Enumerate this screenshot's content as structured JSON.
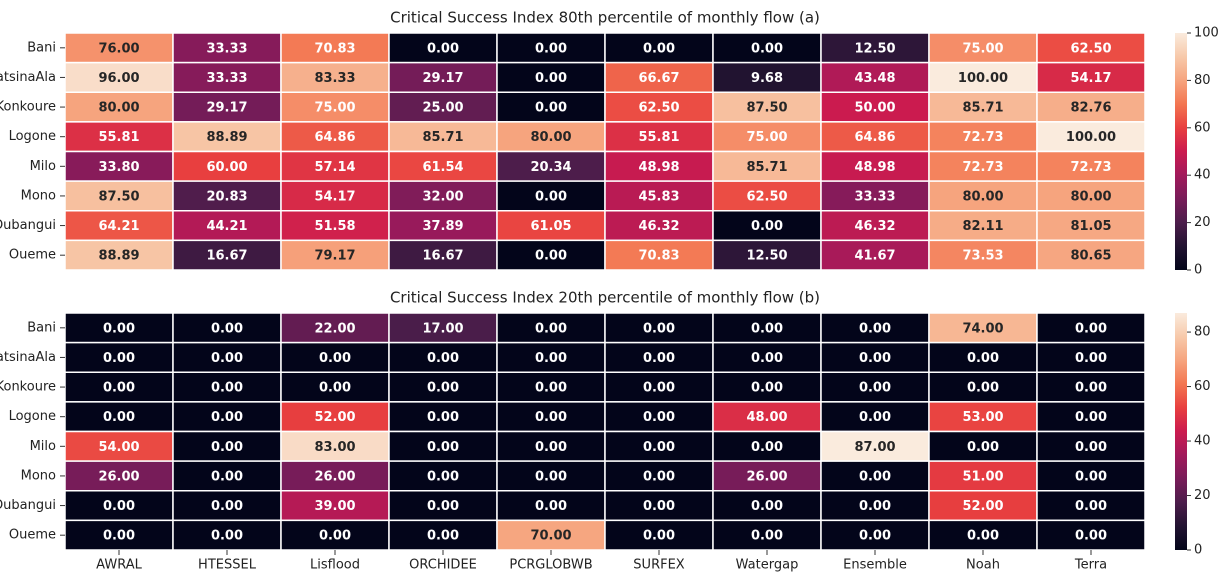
{
  "chart_data": [
    {
      "type": "heatmap",
      "title": "Critical Success Index 80th percentile of monthly flow  (a)",
      "colormap": "rocket",
      "rows": [
        "Bani",
        "KatsinaAla",
        "Konkoure",
        "Logone",
        "Milo",
        "Mono",
        "Oubangui",
        "Oueme"
      ],
      "values": [
        [
          76,
          33.33,
          70.83,
          0,
          0,
          0,
          0,
          12.5,
          75,
          62.5
        ],
        [
          96,
          33.33,
          83.33,
          29.17,
          0,
          66.67,
          9.68,
          43.48,
          100,
          54.17
        ],
        [
          80,
          29.17,
          75,
          25,
          0,
          62.5,
          87.5,
          50,
          85.71,
          82.76
        ],
        [
          55.81,
          88.89,
          64.86,
          85.71,
          80,
          55.81,
          75,
          64.86,
          72.73,
          100
        ],
        [
          33.8,
          60,
          57.14,
          61.54,
          20.34,
          48.98,
          85.71,
          48.98,
          72.73,
          72.73
        ],
        [
          87.5,
          20.83,
          54.17,
          32,
          0,
          45.83,
          62.5,
          33.33,
          80,
          80
        ],
        [
          64.21,
          44.21,
          51.58,
          37.89,
          61.05,
          46.32,
          0,
          46.32,
          82.11,
          81.05
        ],
        [
          88.89,
          16.67,
          79.17,
          16.67,
          0,
          70.83,
          12.5,
          41.67,
          73.53,
          80.65
        ]
      ],
      "value_labels": [
        [
          "76.00",
          "33.33",
          "70.83",
          "0.00",
          "0.00",
          "0.00",
          "0.00",
          "12.50",
          "75.00",
          "62.50"
        ],
        [
          "96.00",
          "33.33",
          "83.33",
          "29.17",
          "0.00",
          "66.67",
          "9.68",
          "43.48",
          "100.00",
          "54.17"
        ],
        [
          "80.00",
          "29.17",
          "75.00",
          "25.00",
          "0.00",
          "62.50",
          "87.50",
          "50.00",
          "85.71",
          "82.76"
        ],
        [
          "55.81",
          "88.89",
          "64.86",
          "85.71",
          "80.00",
          "55.81",
          "75.00",
          "64.86",
          "72.73",
          "100.00"
        ],
        [
          "33.80",
          "60.00",
          "57.14",
          "61.54",
          "20.34",
          "48.98",
          "85.71",
          "48.98",
          "72.73",
          "72.73"
        ],
        [
          "87.50",
          "20.83",
          "54.17",
          "32.00",
          "0.00",
          "45.83",
          "62.50",
          "33.33",
          "80.00",
          "80.00"
        ],
        [
          "64.21",
          "44.21",
          "51.58",
          "37.89",
          "61.05",
          "46.32",
          "0.00",
          "46.32",
          "82.11",
          "81.05"
        ],
        [
          "88.89",
          "16.67",
          "79.17",
          "16.67",
          "0.00",
          "70.83",
          "12.50",
          "41.67",
          "73.53",
          "80.65"
        ]
      ],
      "zlim": [
        0,
        100
      ],
      "zticks": [
        0,
        20,
        40,
        60,
        80,
        100
      ]
    },
    {
      "type": "heatmap",
      "title": "Critical Success Index 20th percentile of monthly flow  (b)",
      "colormap": "rocket",
      "rows": [
        "Bani",
        "KatsinaAla",
        "Konkoure",
        "Logone",
        "Milo",
        "Mono",
        "Oubangui",
        "Oueme"
      ],
      "columns": [
        "AWRAL",
        "HTESSEL",
        "Lisflood",
        "ORCHIDEE",
        "PCRGLOBWB",
        "SURFEX",
        "Watergap",
        "Ensemble",
        "Noah",
        "Terra"
      ],
      "values": [
        [
          0,
          0,
          22,
          17,
          0,
          0,
          0,
          0,
          74,
          0
        ],
        [
          0,
          0,
          0,
          0,
          0,
          0,
          0,
          0,
          0,
          0
        ],
        [
          0,
          0,
          0,
          0,
          0,
          0,
          0,
          0,
          0,
          0
        ],
        [
          0,
          0,
          52,
          0,
          0,
          0,
          48,
          0,
          53,
          0
        ],
        [
          54,
          0,
          83,
          0,
          0,
          0,
          0,
          87,
          0,
          0
        ],
        [
          26,
          0,
          26,
          0,
          0,
          0,
          26,
          0,
          51,
          0
        ],
        [
          0,
          0,
          39,
          0,
          0,
          0,
          0,
          0,
          52,
          0
        ],
        [
          0,
          0,
          0,
          0,
          70,
          0,
          0,
          0,
          0,
          0
        ]
      ],
      "value_labels": [
        [
          "0.00",
          "0.00",
          "22.00",
          "17.00",
          "0.00",
          "0.00",
          "0.00",
          "0.00",
          "74.00",
          "0.00"
        ],
        [
          "0.00",
          "0.00",
          "0.00",
          "0.00",
          "0.00",
          "0.00",
          "0.00",
          "0.00",
          "0.00",
          "0.00"
        ],
        [
          "0.00",
          "0.00",
          "0.00",
          "0.00",
          "0.00",
          "0.00",
          "0.00",
          "0.00",
          "0.00",
          "0.00"
        ],
        [
          "0.00",
          "0.00",
          "52.00",
          "0.00",
          "0.00",
          "0.00",
          "48.00",
          "0.00",
          "53.00",
          "0.00"
        ],
        [
          "54.00",
          "0.00",
          "83.00",
          "0.00",
          "0.00",
          "0.00",
          "0.00",
          "87.00",
          "0.00",
          "0.00"
        ],
        [
          "26.00",
          "0.00",
          "26.00",
          "0.00",
          "0.00",
          "0.00",
          "26.00",
          "0.00",
          "51.00",
          "0.00"
        ],
        [
          "0.00",
          "0.00",
          "39.00",
          "0.00",
          "0.00",
          "0.00",
          "0.00",
          "0.00",
          "52.00",
          "0.00"
        ],
        [
          "0.00",
          "0.00",
          "0.00",
          "0.00",
          "70.00",
          "0.00",
          "0.00",
          "0.00",
          "0.00",
          "0.00"
        ]
      ],
      "zlim": [
        0,
        87
      ],
      "zticks": [
        0,
        20,
        40,
        60,
        80
      ]
    }
  ]
}
